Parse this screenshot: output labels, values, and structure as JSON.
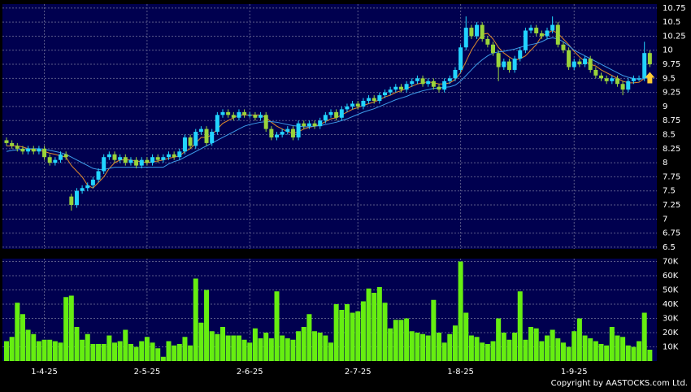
{
  "chart_data": [
    {
      "type": "candlestick",
      "categories": [
        null,
        null,
        null,
        null,
        null,
        null,
        null,
        "1-4-25",
        null,
        null,
        null,
        null,
        null,
        null,
        null,
        null,
        null,
        null,
        null,
        null,
        null,
        null,
        null,
        null,
        null,
        null,
        "2-5-25",
        null,
        null,
        null,
        null,
        null,
        null,
        null,
        null,
        null,
        null,
        null,
        null,
        null,
        null,
        null,
        null,
        null,
        null,
        "2-6-25",
        null,
        null,
        null,
        null,
        null,
        null,
        null,
        null,
        null,
        null,
        null,
        null,
        null,
        null,
        null,
        null,
        null,
        null,
        null,
        "2-7-25",
        null,
        null,
        null,
        null,
        null,
        null,
        null,
        null,
        null,
        null,
        null,
        null,
        null,
        null,
        null,
        null,
        null,
        null,
        "1-8-25",
        null,
        null,
        null,
        null,
        null,
        null,
        null,
        null,
        null,
        null,
        null,
        null,
        null,
        null,
        null,
        null,
        null,
        null,
        null,
        null,
        "1-9-25",
        null,
        null,
        null,
        null,
        null,
        null,
        null,
        null,
        null,
        null,
        null,
        null,
        null,
        null
      ],
      "open": [
        8.4,
        8.35,
        8.3,
        8.25,
        8.2,
        8.25,
        8.2,
        8.25,
        8.1,
        8.0,
        8.05,
        8.15,
        7.4,
        7.25,
        7.5,
        7.55,
        7.6,
        7.7,
        7.85,
        8.1,
        8.15,
        8.05,
        8.1,
        8.0,
        8.05,
        7.95,
        8.05,
        8.0,
        8.1,
        8.05,
        8.1,
        8.15,
        8.1,
        8.2,
        8.45,
        8.3,
        8.55,
        8.6,
        8.35,
        8.55,
        8.85,
        8.9,
        8.85,
        8.8,
        8.9,
        8.85,
        8.85,
        8.8,
        8.85,
        8.6,
        8.45,
        8.5,
        8.55,
        8.6,
        8.45,
        8.7,
        8.65,
        8.7,
        8.65,
        8.75,
        8.85,
        8.9,
        8.8,
        8.95,
        9.0,
        9.05,
        9.0,
        9.1,
        9.15,
        9.1,
        9.2,
        9.25,
        9.3,
        9.35,
        9.3,
        9.4,
        9.45,
        9.5,
        9.4,
        9.45,
        9.35,
        9.3,
        9.45,
        9.5,
        9.65,
        10.05,
        10.4,
        10.25,
        10.45,
        10.2,
        10.1,
        9.95,
        9.7,
        9.8,
        9.65,
        9.85,
        10.0,
        10.35,
        10.4,
        10.3,
        10.25,
        10.35,
        10.45,
        10.1,
        10.0,
        9.7,
        9.8,
        9.75,
        9.85,
        9.65,
        9.55,
        9.5,
        9.45,
        9.5,
        9.4,
        9.3,
        9.45,
        9.5,
        9.5,
        9.95
      ],
      "high": [
        8.45,
        8.4,
        8.35,
        8.3,
        8.3,
        8.3,
        8.3,
        8.3,
        8.15,
        8.1,
        8.2,
        8.2,
        7.45,
        7.55,
        7.6,
        7.65,
        7.75,
        7.9,
        8.15,
        8.2,
        8.2,
        8.15,
        8.15,
        8.1,
        8.1,
        8.1,
        8.1,
        8.15,
        8.15,
        8.15,
        8.2,
        8.2,
        8.25,
        8.5,
        8.5,
        8.6,
        8.65,
        8.65,
        8.6,
        8.9,
        8.95,
        8.95,
        8.9,
        8.95,
        8.95,
        8.9,
        8.9,
        8.9,
        8.9,
        8.65,
        8.55,
        8.6,
        8.65,
        8.65,
        8.75,
        8.75,
        8.75,
        8.75,
        8.8,
        8.9,
        8.95,
        8.95,
        9.0,
        9.05,
        9.1,
        9.1,
        9.15,
        9.2,
        9.2,
        9.25,
        9.3,
        9.35,
        9.4,
        9.4,
        9.45,
        9.5,
        9.55,
        9.55,
        9.5,
        9.5,
        9.4,
        9.5,
        9.55,
        9.7,
        10.1,
        10.6,
        10.45,
        10.5,
        10.5,
        10.25,
        10.15,
        10.0,
        9.85,
        9.85,
        9.9,
        10.05,
        10.4,
        10.45,
        10.45,
        10.35,
        10.4,
        10.6,
        10.5,
        10.15,
        10.05,
        9.85,
        9.85,
        9.9,
        9.9,
        9.7,
        9.6,
        9.55,
        9.55,
        9.55,
        9.45,
        9.5,
        9.55,
        9.55,
        10.15,
        10.0
      ],
      "low": [
        8.3,
        8.25,
        8.2,
        8.15,
        8.15,
        8.15,
        8.15,
        8.05,
        7.95,
        7.95,
        8.0,
        8.05,
        7.15,
        7.2,
        7.45,
        7.5,
        7.55,
        7.65,
        7.8,
        8.05,
        8.0,
        8.0,
        7.95,
        7.95,
        7.9,
        7.9,
        7.95,
        7.95,
        8.0,
        8.0,
        8.05,
        8.05,
        8.05,
        8.15,
        8.25,
        8.25,
        8.5,
        8.3,
        8.3,
        8.5,
        8.8,
        8.8,
        8.75,
        8.75,
        8.8,
        8.8,
        8.75,
        8.75,
        8.55,
        8.4,
        8.4,
        8.45,
        8.5,
        8.4,
        8.4,
        8.6,
        8.6,
        8.6,
        8.6,
        8.7,
        8.8,
        8.75,
        8.75,
        8.9,
        8.95,
        8.95,
        8.95,
        9.05,
        9.05,
        9.05,
        9.15,
        9.2,
        9.25,
        9.25,
        9.25,
        9.35,
        9.4,
        9.35,
        9.35,
        9.3,
        9.25,
        9.25,
        9.4,
        9.45,
        9.6,
        10.0,
        10.2,
        10.2,
        10.15,
        10.05,
        9.9,
        9.45,
        9.65,
        9.6,
        9.6,
        9.8,
        9.95,
        10.3,
        10.25,
        10.2,
        10.2,
        10.3,
        10.05,
        9.95,
        9.65,
        9.65,
        9.7,
        9.7,
        9.6,
        9.5,
        9.45,
        9.4,
        9.4,
        9.35,
        9.2,
        9.25,
        9.4,
        9.45,
        9.45,
        9.7
      ],
      "close": [
        8.35,
        8.3,
        8.25,
        8.2,
        8.25,
        8.2,
        8.25,
        8.1,
        8.0,
        8.05,
        8.15,
        8.1,
        7.25,
        7.5,
        7.55,
        7.6,
        7.7,
        7.85,
        8.1,
        8.15,
        8.05,
        8.1,
        8.0,
        8.05,
        7.95,
        8.05,
        8.0,
        8.1,
        8.05,
        8.1,
        8.15,
        8.1,
        8.2,
        8.45,
        8.3,
        8.55,
        8.6,
        8.35,
        8.55,
        8.85,
        8.9,
        8.85,
        8.8,
        8.9,
        8.85,
        8.85,
        8.8,
        8.85,
        8.6,
        8.45,
        8.5,
        8.55,
        8.6,
        8.45,
        8.7,
        8.65,
        8.7,
        8.65,
        8.75,
        8.85,
        8.9,
        8.8,
        8.95,
        9.0,
        9.05,
        9.0,
        9.1,
        9.15,
        9.1,
        9.2,
        9.25,
        9.3,
        9.35,
        9.3,
        9.4,
        9.45,
        9.5,
        9.4,
        9.45,
        9.35,
        9.3,
        9.45,
        9.5,
        9.65,
        10.05,
        10.4,
        10.25,
        10.45,
        10.2,
        10.1,
        9.95,
        9.7,
        9.8,
        9.65,
        9.85,
        10.0,
        10.35,
        10.4,
        10.3,
        10.25,
        10.35,
        10.45,
        10.1,
        10.0,
        9.7,
        9.8,
        9.75,
        9.85,
        9.65,
        9.55,
        9.5,
        9.45,
        9.5,
        9.4,
        9.3,
        9.45,
        9.5,
        9.5,
        9.95,
        9.75
      ],
      "lines": [
        {
          "color": "#e08a2c",
          "values": [
            8.3,
            8.3,
            8.3,
            8.28,
            8.25,
            8.23,
            8.22,
            8.2,
            8.17,
            8.15,
            8.12,
            8.1,
            7.95,
            7.85,
            7.75,
            7.6,
            7.55,
            7.65,
            7.75,
            7.9,
            8.0,
            8.05,
            8.05,
            8.05,
            8.03,
            8.02,
            8.0,
            8.02,
            8.03,
            8.05,
            8.08,
            8.1,
            8.12,
            8.2,
            8.25,
            8.35,
            8.45,
            8.45,
            8.5,
            8.6,
            8.7,
            8.75,
            8.8,
            8.85,
            8.85,
            8.85,
            8.85,
            8.85,
            8.8,
            8.72,
            8.65,
            8.6,
            8.55,
            8.52,
            8.55,
            8.6,
            8.63,
            8.65,
            8.68,
            8.73,
            8.78,
            8.8,
            8.85,
            8.9,
            8.95,
            8.98,
            9.02,
            9.05,
            9.08,
            9.12,
            9.17,
            9.2,
            9.25,
            9.28,
            9.32,
            9.36,
            9.4,
            9.42,
            9.44,
            9.42,
            9.4,
            9.4,
            9.42,
            9.48,
            9.6,
            9.8,
            10.0,
            10.15,
            10.28,
            10.3,
            10.2,
            10.05,
            9.95,
            9.88,
            9.82,
            9.85,
            9.9,
            10.0,
            10.1,
            10.25,
            10.3,
            10.35,
            10.3,
            10.2,
            10.1,
            9.98,
            9.88,
            9.8,
            9.75,
            9.72,
            9.65,
            9.6,
            9.55,
            9.5,
            9.45,
            9.42,
            9.42,
            9.43,
            9.5,
            9.58
          ]
        },
        {
          "color": "#3d9be9",
          "values": [
            8.2,
            8.22,
            8.23,
            8.24,
            8.25,
            8.25,
            8.25,
            8.24,
            8.22,
            8.2,
            8.18,
            8.15,
            8.1,
            8.05,
            8.0,
            7.95,
            7.9,
            7.88,
            7.88,
            7.9,
            7.92,
            7.92,
            7.92,
            7.92,
            7.92,
            7.92,
            7.92,
            7.92,
            7.92,
            7.92,
            7.98,
            8.02,
            8.05,
            8.1,
            8.15,
            8.2,
            8.25,
            8.3,
            8.35,
            8.4,
            8.45,
            8.5,
            8.55,
            8.6,
            8.65,
            8.68,
            8.7,
            8.72,
            8.73,
            8.73,
            8.72,
            8.7,
            8.68,
            8.66,
            8.65,
            8.64,
            8.64,
            8.65,
            8.66,
            8.68,
            8.7,
            8.72,
            8.75,
            8.78,
            8.82,
            8.86,
            8.9,
            8.93,
            8.96,
            9.0,
            9.04,
            9.08,
            9.12,
            9.15,
            9.18,
            9.22,
            9.25,
            9.28,
            9.3,
            9.32,
            9.33,
            9.34,
            9.35,
            9.38,
            9.45,
            9.55,
            9.65,
            9.75,
            9.83,
            9.9,
            9.95,
            9.97,
            9.98,
            10.0,
            10.02,
            10.05,
            10.08,
            10.1,
            10.12,
            10.15,
            10.2,
            10.22,
            10.2,
            10.15,
            10.08,
            10.0,
            9.95,
            9.9,
            9.85,
            9.8,
            9.75,
            9.7,
            9.65,
            9.6,
            9.55,
            9.52,
            9.5,
            9.48,
            9.5,
            9.52
          ]
        }
      ],
      "up_color": "#22d4ff",
      "down_color": "#9ad43a",
      "ylim": [
        6.47,
        10.82
      ],
      "yticks": [
        6.5,
        6.75,
        7,
        7.25,
        7.5,
        7.75,
        8,
        8.25,
        8.5,
        8.75,
        9,
        9.25,
        9.5,
        9.75,
        10,
        10.25,
        10.5,
        10.75
      ],
      "grid": true
    },
    {
      "type": "bar",
      "values": [
        14000,
        17000,
        41000,
        33000,
        22000,
        19000,
        14000,
        15000,
        15000,
        14000,
        13000,
        45000,
        46000,
        24000,
        15000,
        19000,
        12000,
        12000,
        12000,
        18000,
        13000,
        14000,
        22000,
        12000,
        10000,
        14000,
        17000,
        13000,
        9000,
        3000,
        14000,
        11000,
        12000,
        17000,
        11000,
        58000,
        27000,
        50000,
        21000,
        19000,
        24000,
        18000,
        18000,
        18000,
        15000,
        13000,
        23000,
        16000,
        20000,
        16000,
        49000,
        18000,
        16000,
        15000,
        21000,
        24000,
        33000,
        21000,
        20000,
        18000,
        13000,
        40000,
        36000,
        40000,
        34000,
        35000,
        42000,
        51000,
        48000,
        52000,
        41000,
        23000,
        29000,
        29000,
        30000,
        21000,
        20000,
        19000,
        18000,
        43000,
        20000,
        13000,
        19000,
        25000,
        70000,
        34000,
        18000,
        17000,
        13000,
        12000,
        14000,
        30000,
        20000,
        15000,
        20000,
        49000,
        15000,
        24000,
        23000,
        14000,
        18000,
        22000,
        16000,
        13000,
        10000,
        21000,
        30000,
        18000,
        16000,
        14000,
        12000,
        11000,
        24000,
        18000,
        17000,
        11000,
        10000,
        14000,
        34000,
        8000
      ],
      "color": "#66ee11",
      "ylim": [
        0,
        72000
      ],
      "yticks": [
        {
          "value": 10000,
          "label": "10K"
        },
        {
          "value": 20000,
          "label": "20K"
        },
        {
          "value": 30000,
          "label": "30K"
        },
        {
          "value": 40000,
          "label": "40K"
        },
        {
          "value": 50000,
          "label": "50K"
        },
        {
          "value": 60000,
          "label": "60K"
        },
        {
          "value": 70000,
          "label": "70K"
        }
      ],
      "grid": true
    }
  ],
  "copyright": "Copyright by AASTOCKS.com Ltd."
}
